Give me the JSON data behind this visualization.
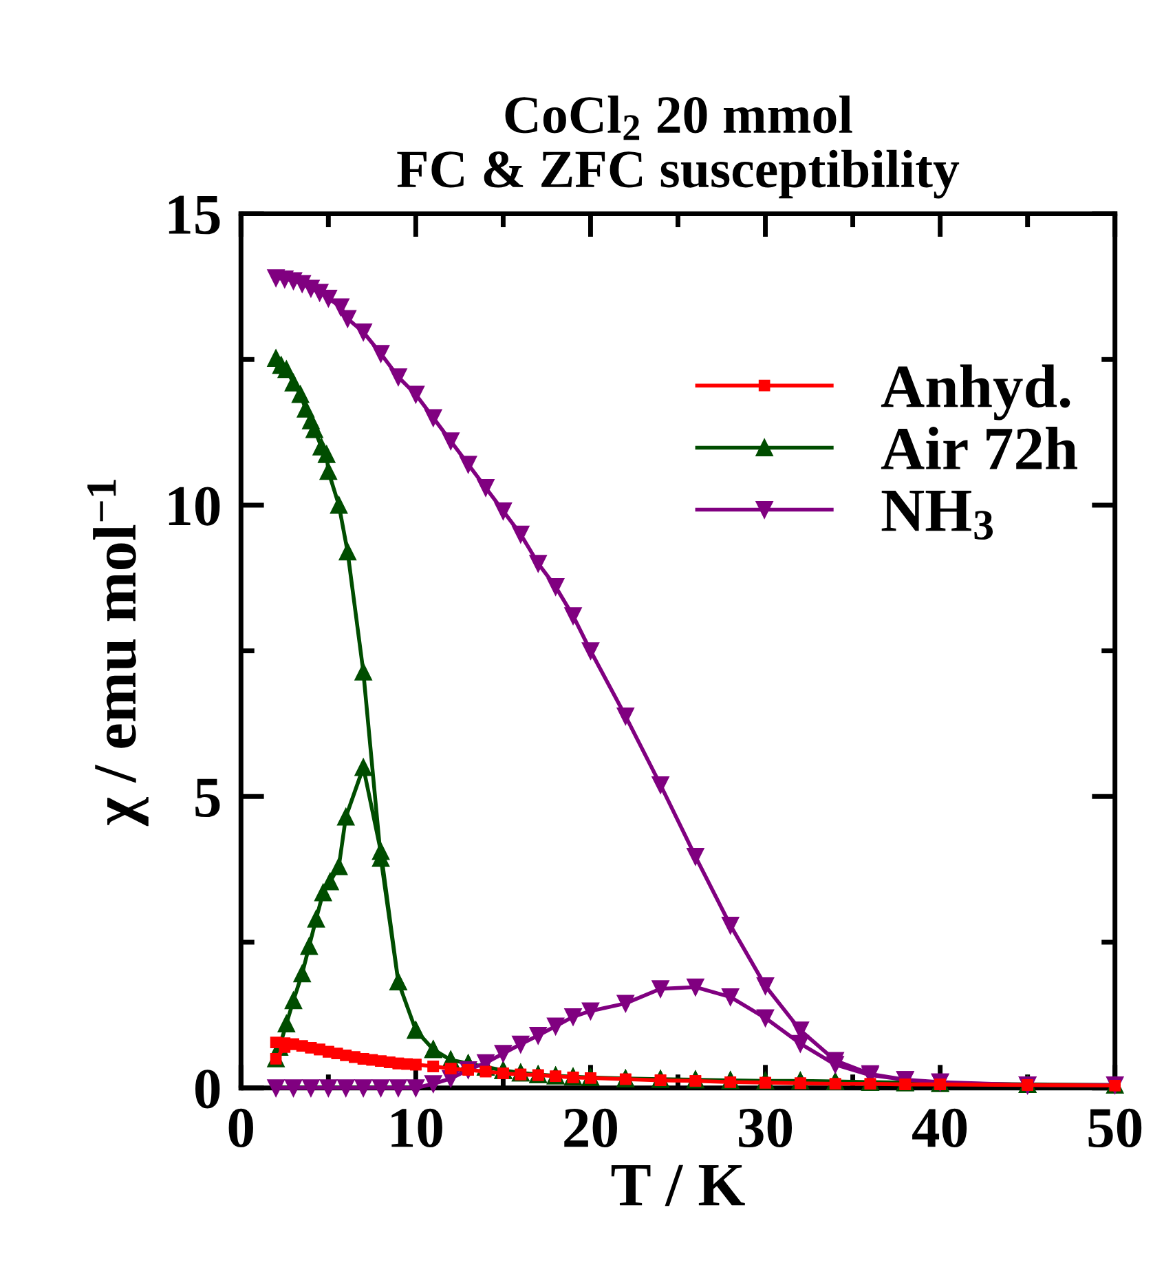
{
  "chart_data": {
    "type": "line",
    "title": "CoCl$_{2}$ 20 mmol\nFC & ZFC susceptibility",
    "xlabel": "T / K",
    "ylabel": "χ / emu mol$^{−1}$",
    "xlim": [
      0,
      50
    ],
    "ylim": [
      0,
      15
    ],
    "xticks": [
      0,
      10,
      20,
      30,
      40,
      50
    ],
    "yticks": [
      0,
      5,
      10,
      15
    ],
    "grid": false,
    "legend": "top right",
    "line_style": "solid",
    "series": [
      {
        "name": "Anhyd.",
        "color": "#ff0000",
        "marker": "square",
        "x": [
          2,
          2.5,
          3,
          3.5,
          4,
          4.5,
          5,
          5.5,
          6,
          6.5,
          7,
          7.5,
          8,
          8.5,
          9,
          9.5,
          10,
          11,
          12,
          13,
          14,
          15,
          16,
          17,
          18,
          19,
          20,
          22,
          24,
          26,
          28,
          30,
          32,
          34,
          36,
          38,
          40,
          45,
          50,
          45,
          40,
          38,
          36,
          34,
          32,
          30,
          28,
          26,
          24,
          22,
          20,
          19,
          18,
          17,
          16,
          15,
          14,
          13,
          12,
          11,
          10,
          9.5,
          9,
          8.5,
          8,
          7.5,
          7,
          6.5,
          6,
          5.5,
          5,
          4.5,
          4,
          3.5,
          3,
          2.5,
          2
        ],
        "values": [
          0.5,
          0.7,
          0.75,
          0.72,
          0.69,
          0.66,
          0.62,
          0.59,
          0.56,
          0.53,
          0.5,
          0.48,
          0.46,
          0.44,
          0.42,
          0.41,
          0.4,
          0.37,
          0.33,
          0.31,
          0.28,
          0.25,
          0.23,
          0.22,
          0.2,
          0.18,
          0.17,
          0.15,
          0.13,
          0.12,
          0.1,
          0.09,
          0.08,
          0.07,
          0.07,
          0.06,
          0.06,
          0.05,
          0.04,
          0.05,
          0.06,
          0.06,
          0.07,
          0.07,
          0.08,
          0.09,
          0.1,
          0.12,
          0.13,
          0.15,
          0.17,
          0.18,
          0.2,
          0.22,
          0.23,
          0.25,
          0.28,
          0.31,
          0.33,
          0.37,
          0.4,
          0.41,
          0.42,
          0.44,
          0.46,
          0.48,
          0.5,
          0.53,
          0.56,
          0.59,
          0.62,
          0.66,
          0.69,
          0.72,
          0.75,
          0.77,
          0.78
        ]
      },
      {
        "name": "Air 72h",
        "color": "#004d00",
        "marker": "triangle",
        "x": [
          2,
          2.2,
          2.6,
          3,
          3.5,
          3.9,
          4.3,
          4.7,
          5.1,
          5.6,
          6,
          7,
          8,
          9,
          10,
          11,
          12,
          13,
          14,
          15,
          16,
          17,
          18,
          19,
          20,
          22,
          24,
          26,
          28,
          30,
          32,
          34,
          36,
          38,
          40,
          45,
          50,
          45,
          40,
          38,
          36,
          34,
          32,
          30,
          28,
          26,
          24,
          22,
          20,
          19,
          18,
          17,
          16,
          15,
          14,
          13,
          12,
          11,
          10,
          9,
          8,
          7,
          6.1,
          5.6,
          5,
          4.9,
          4.6,
          4.2,
          4,
          3.7,
          3.4,
          3,
          2.6,
          2.3,
          2
        ],
        "values": [
          0.5,
          0.7,
          1.1,
          1.5,
          1.96,
          2.43,
          2.9,
          3.35,
          3.54,
          3.8,
          4.65,
          5.5,
          4.06,
          1.82,
          0.99,
          0.66,
          0.48,
          0.42,
          0.36,
          0.3,
          0.26,
          0.23,
          0.21,
          0.19,
          0.18,
          0.16,
          0.15,
          0.14,
          0.13,
          0.12,
          0.12,
          0.11,
          0.1,
          0.09,
          0.08,
          0.06,
          0.05,
          0.06,
          0.08,
          0.09,
          0.1,
          0.11,
          0.12,
          0.12,
          0.13,
          0.14,
          0.15,
          0.16,
          0.18,
          0.19,
          0.21,
          0.23,
          0.26,
          0.3,
          0.36,
          0.42,
          0.48,
          0.66,
          0.99,
          1.82,
          3.94,
          7.14,
          9.2,
          10.0,
          10.58,
          10.87,
          11.0,
          11.3,
          11.45,
          11.65,
          11.9,
          12.1,
          12.33,
          12.4,
          12.52
        ]
      },
      {
        "name": "NH$_{3}$",
        "color": "#800080",
        "marker": "triangle_down",
        "x": [
          2,
          3,
          4,
          5,
          6,
          7,
          8,
          9,
          10,
          11,
          12,
          13,
          14,
          15,
          16,
          17,
          18,
          19,
          20,
          22,
          24,
          26,
          28,
          30,
          32,
          34,
          36,
          38,
          40,
          45,
          50,
          45,
          40,
          38,
          36,
          34,
          32,
          30,
          28,
          26,
          24,
          22,
          20,
          19,
          18,
          17,
          16,
          15,
          14,
          13,
          12,
          11,
          10,
          9,
          8,
          7,
          6.1,
          5.7,
          5,
          4.5,
          4,
          3.5,
          3,
          2.5,
          2
        ],
        "values": [
          0,
          0,
          0,
          0,
          0,
          0,
          0,
          0,
          0,
          0.07,
          0.16,
          0.31,
          0.43,
          0.59,
          0.75,
          0.9,
          1.06,
          1.22,
          1.32,
          1.45,
          1.7,
          1.73,
          1.56,
          1.2,
          0.76,
          0.4,
          0.22,
          0.14,
          0.1,
          0.05,
          0.05,
          0.05,
          0.1,
          0.14,
          0.24,
          0.47,
          0.99,
          1.75,
          2.79,
          3.97,
          5.2,
          6.38,
          7.5,
          8.1,
          8.6,
          9.0,
          9.5,
          9.9,
          10.3,
          10.7,
          11.1,
          11.5,
          11.9,
          12.2,
          12.6,
          12.97,
          13.2,
          13.4,
          13.55,
          13.65,
          13.72,
          13.8,
          13.85,
          13.88,
          13.9
        ]
      }
    ]
  }
}
